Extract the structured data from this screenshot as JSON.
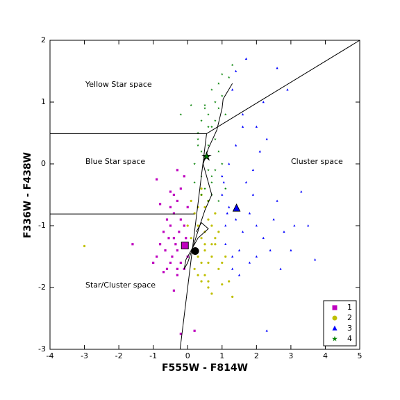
{
  "chart_data": {
    "type": "scatter",
    "xlabel": "F555W - F814W",
    "ylabel": "F336W - F438W",
    "xlim": [
      -4,
      5
    ],
    "ylim": [
      -3,
      2
    ],
    "xticks": [
      -4,
      -3,
      -2,
      -1,
      0,
      1,
      2,
      3,
      4,
      5
    ],
    "yticks": [
      -3,
      -2,
      -1,
      0,
      1,
      2
    ],
    "legend": "lower right",
    "annotations": [
      "Yellow Star space",
      "Blue Star space",
      "Cluster space",
      "Star/Cluster space"
    ],
    "series": [
      {
        "name": "1",
        "color": "#bf00bf",
        "marker": "square",
        "x": [
          -0.5,
          -0.4,
          -0.3,
          -0.2,
          -0.1,
          0.0,
          -0.6,
          -0.7,
          -0.8,
          -0.9,
          -1.0,
          -0.5,
          -0.4,
          -0.3,
          -0.2,
          -0.6,
          -0.7,
          -0.3,
          -0.1,
          0.0,
          -0.45,
          -0.35,
          -0.25,
          -0.55,
          -0.65,
          -0.15,
          -0.05,
          -0.5,
          -0.3,
          -0.4,
          -0.2,
          -0.8,
          -1.6,
          -0.9,
          -0.5,
          -0.3,
          -0.1,
          0.2,
          -0.2,
          -0.4
        ],
        "y": [
          -1.0,
          -1.2,
          -1.4,
          -1.6,
          -1.7,
          -1.5,
          -0.9,
          -1.1,
          -1.3,
          -1.5,
          -1.6,
          -0.7,
          -0.8,
          -0.6,
          -0.9,
          -1.7,
          -1.75,
          -1.8,
          -1.0,
          -0.7,
          -1.5,
          -1.3,
          -1.1,
          -1.2,
          -1.4,
          -1.3,
          -1.2,
          -1.6,
          -1.7,
          -0.5,
          -0.4,
          -0.65,
          -1.3,
          -0.25,
          -0.45,
          -0.1,
          -0.2,
          -2.7,
          -2.75,
          -2.05
        ],
        "center": {
          "x": -0.08,
          "y": -1.32
        }
      },
      {
        "name": "2",
        "color": "#bfbf00",
        "marker": "circle",
        "x": [
          0.1,
          0.2,
          0.3,
          0.4,
          0.5,
          0.6,
          0.7,
          0.8,
          0.9,
          1.0,
          0.2,
          0.3,
          0.4,
          0.5,
          0.6,
          0.7,
          0.8,
          0.3,
          0.4,
          0.5,
          0.6,
          0.2,
          0.1,
          0.0,
          0.5,
          0.7,
          0.9,
          1.1,
          1.2,
          0.6,
          0.4,
          0.3,
          0.8,
          0.5,
          -3.0,
          1.3,
          1.0,
          0.4,
          0.6,
          0.7
        ],
        "y": [
          -0.6,
          -0.8,
          -1.0,
          -1.2,
          -1.4,
          -1.6,
          -1.5,
          -1.3,
          -1.1,
          -1.6,
          -1.7,
          -1.8,
          -0.5,
          -0.7,
          -0.9,
          -1.0,
          -0.8,
          -1.5,
          -1.6,
          -1.8,
          -1.9,
          -1.4,
          -1.2,
          -1.0,
          -1.1,
          -1.3,
          -1.7,
          -1.5,
          -1.9,
          -0.6,
          -1.9,
          -0.7,
          -1.2,
          -1.3,
          -1.33,
          -2.15,
          -1.95,
          -0.4,
          -2.0,
          -2.1
        ],
        "center": {
          "x": 0.22,
          "y": -1.41
        }
      },
      {
        "name": "3",
        "color": "#0000ff",
        "marker": "triangle",
        "x": [
          1.0,
          1.2,
          1.4,
          1.6,
          1.8,
          2.0,
          2.2,
          2.5,
          2.8,
          3.0,
          3.3,
          3.7,
          1.1,
          1.3,
          1.5,
          1.7,
          1.9,
          2.1,
          2.3,
          2.6,
          1.2,
          1.4,
          1.6,
          1.0,
          1.1,
          1.3,
          1.5,
          1.8,
          2.0,
          2.4,
          2.7,
          3.1,
          1.4,
          1.7,
          2.2,
          2.0,
          1.6,
          1.3,
          2.9,
          3.5,
          1.9,
          1.15,
          2.6,
          2.3,
          1.05
        ],
        "y": [
          -0.5,
          -0.7,
          -0.9,
          -1.1,
          -0.8,
          -1.0,
          -1.2,
          -0.9,
          -1.1,
          -1.4,
          -0.45,
          -1.55,
          -1.3,
          -1.5,
          -1.4,
          -0.3,
          -0.1,
          0.2,
          0.4,
          -0.6,
          0.0,
          0.3,
          0.6,
          -0.2,
          -1.0,
          -1.7,
          -1.8,
          -1.6,
          -1.5,
          -1.4,
          -1.7,
          -1.0,
          1.5,
          1.7,
          1.0,
          0.6,
          0.8,
          1.2,
          1.2,
          -1.0,
          -0.5,
          -0.8,
          1.55,
          -2.7,
          -0.3
        ],
        "center": {
          "x": 1.42,
          "y": -0.72
        }
      },
      {
        "name": "4",
        "color": "#008000",
        "marker": "star",
        "x": [
          0.3,
          0.4,
          0.5,
          0.6,
          0.7,
          0.8,
          0.9,
          1.0,
          0.5,
          0.6,
          0.7,
          0.4,
          0.3,
          0.5,
          0.7,
          0.9,
          1.1,
          0.6,
          0.8,
          1.0,
          0.2,
          0.4,
          0.6,
          0.8,
          0.5,
          0.7,
          0.9,
          1.2,
          1.3,
          1.1,
          0.6,
          0.4,
          0.3,
          0.7,
          -0.2,
          0.1,
          0.2,
          1.0,
          0.9,
          0.8
        ],
        "y": [
          0.5,
          0.7,
          0.9,
          0.8,
          0.6,
          0.4,
          0.2,
          0.0,
          0.1,
          -0.1,
          -0.3,
          -0.2,
          0.3,
          -0.4,
          -0.5,
          -0.6,
          -0.4,
          0.3,
          1.0,
          1.1,
          0.0,
          -0.5,
          0.6,
          0.7,
          0.95,
          1.2,
          1.3,
          1.4,
          1.6,
          0.8,
          -0.6,
          0.2,
          0.4,
          -0.2,
          0.8,
          0.95,
          -0.3,
          1.45,
          0.9,
          -0.1
        ],
        "center": {
          "x": 0.55,
          "y": 0.12
        }
      }
    ],
    "lines": [
      {
        "x": [
          -4,
          0.55
        ],
        "y": [
          0.49,
          0.49
        ]
      },
      {
        "x": [
          -4,
          0.2
        ],
        "y": [
          -0.81,
          -0.81
        ]
      },
      {
        "x": [
          -0.22,
          0.55
        ],
        "y": [
          -3,
          0.49
        ]
      },
      {
        "x": [
          0.55,
          5
        ],
        "y": [
          0.49,
          2
        ]
      },
      {
        "x": [
          1.3,
          1.03,
          1.0,
          0.85,
          0.6,
          0.45,
          0.55,
          0.7,
          0.5,
          0.35,
          0.15,
          0.0,
          -0.1,
          -0.05,
          0.3,
          0.6,
          0.4,
          0.25
        ],
        "y": [
          1.3,
          1.05,
          0.9,
          0.55,
          0.25,
          0.0,
          -0.2,
          -0.5,
          -0.75,
          -1.0,
          -1.35,
          -1.6,
          -1.7,
          -1.55,
          -1.2,
          -1.05,
          -0.95,
          -1.1
        ]
      }
    ]
  }
}
